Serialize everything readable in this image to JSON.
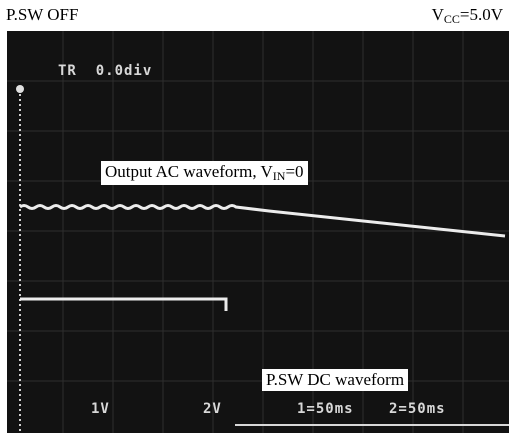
{
  "header": {
    "left_label": "P.SW OFF",
    "supply_prefix": "V",
    "supply_sub": "CC",
    "supply_value": "=5.0V"
  },
  "scope": {
    "trigger_label": "TR",
    "trigger_value": "0.0div",
    "ch1_scale": "1V",
    "ch2_scale": "2V",
    "time_base_1": "1=50ms",
    "time_base_2": "2=50ms"
  },
  "annotations": {
    "ac_label_main": "Output AC waveform, V",
    "ac_label_sub": "IN",
    "ac_label_tail": "=0",
    "dc_label": "P.SW DC waveform"
  },
  "colors": {
    "screen_bg": "#121212",
    "trace": "#ececec",
    "grid": "#3a3a3a"
  }
}
